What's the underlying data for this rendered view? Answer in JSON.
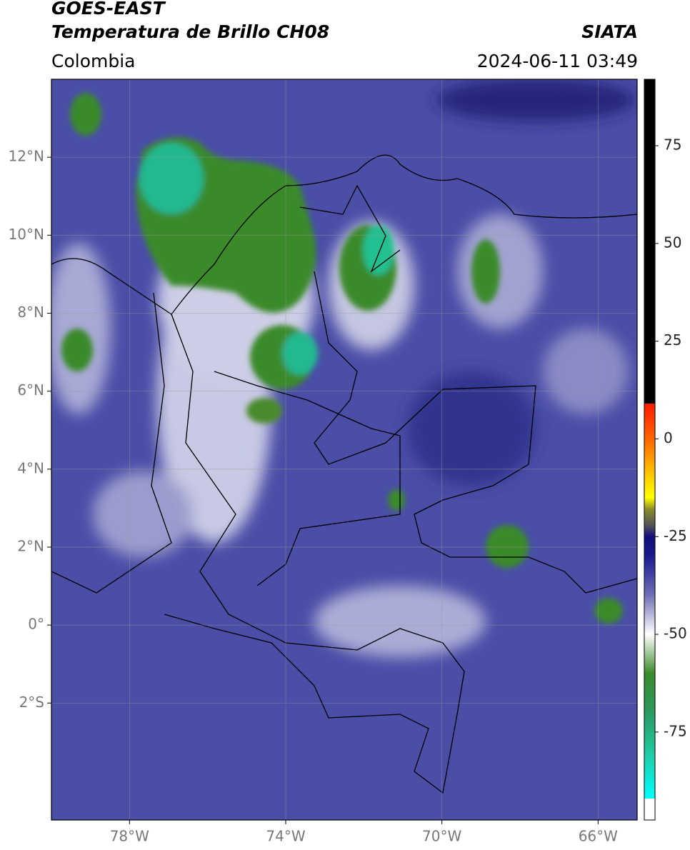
{
  "header": {
    "satellite": "GOES-EAST",
    "product": "Temperatura de Brillo CH08",
    "region": "Colombia",
    "source": "SIATA",
    "datetime": "2024-06-11 03:49"
  },
  "map": {
    "xlim": [
      -80,
      -65
    ],
    "ylim": [
      -5,
      14
    ],
    "xticks": [
      {
        "value": -78,
        "label": "78°W"
      },
      {
        "value": -74,
        "label": "74°W"
      },
      {
        "value": -70,
        "label": "70°W"
      },
      {
        "value": -66,
        "label": "66°W"
      }
    ],
    "yticks": [
      {
        "value": 12,
        "label": "12°N"
      },
      {
        "value": 10,
        "label": "10°N"
      },
      {
        "value": 8,
        "label": "8°N"
      },
      {
        "value": 6,
        "label": "6°N"
      },
      {
        "value": 4,
        "label": "4°N"
      },
      {
        "value": 2,
        "label": "2°N"
      },
      {
        "value": 0,
        "label": "0°"
      },
      {
        "value": -2,
        "label": "2°S"
      }
    ],
    "grid": true,
    "background": "#4a4ea6"
  },
  "colorbar": {
    "lim": [
      -97.5,
      92
    ],
    "ticks": [
      75,
      50,
      25,
      0,
      -25,
      -50,
      -75
    ],
    "stops": [
      {
        "value": 92,
        "color": "#000000"
      },
      {
        "value": 9,
        "color": "#000000"
      },
      {
        "value": 9,
        "color": "#ff1a00"
      },
      {
        "value": 0,
        "color": "#ff6600"
      },
      {
        "value": -10,
        "color": "#ffd000"
      },
      {
        "value": -15,
        "color": "#ffff00"
      },
      {
        "value": -18,
        "color": "#8b8b2a"
      },
      {
        "value": -22,
        "color": "#555555"
      },
      {
        "value": -25,
        "color": "#10107a"
      },
      {
        "value": -30,
        "color": "#1a1a90"
      },
      {
        "value": -40,
        "color": "#7070b8"
      },
      {
        "value": -50,
        "color": "#ffffff"
      },
      {
        "value": -60,
        "color": "#3a8a2a"
      },
      {
        "value": -70,
        "color": "#2a9a60"
      },
      {
        "value": -80,
        "color": "#20c8a0"
      },
      {
        "value": -92,
        "color": "#00ffff"
      },
      {
        "value": -92,
        "color": "#ffffff"
      },
      {
        "value": -97.5,
        "color": "#ffffff"
      }
    ]
  }
}
